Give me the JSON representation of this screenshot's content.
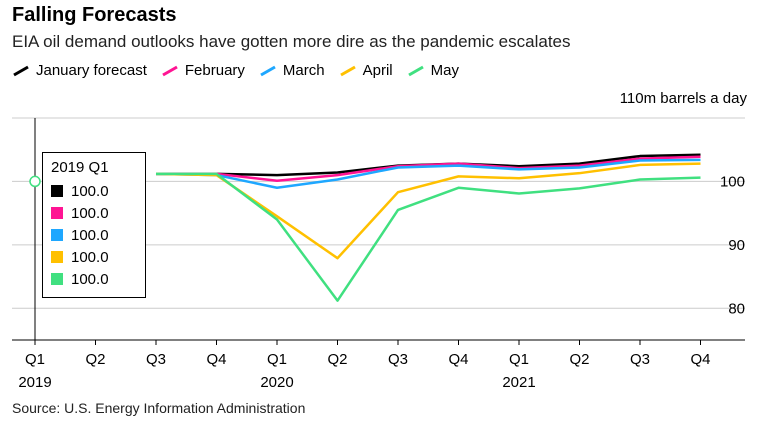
{
  "header": {
    "title": "Falling Forecasts",
    "subtitle": "EIA oil demand outlooks have gotten more dire as the pandemic escalates"
  },
  "unit_label": "110m barrels a day",
  "source": "Source: U.S. Energy Information Administration",
  "tooltip": {
    "title": "2019 Q1",
    "rows": [
      {
        "value": "100.0",
        "color": "#000000"
      },
      {
        "value": "100.0",
        "color": "#ff1493"
      },
      {
        "value": "100.0",
        "color": "#1ea7ff"
      },
      {
        "value": "100.0",
        "color": "#ffc000"
      },
      {
        "value": "100.0",
        "color": "#40e080"
      }
    ]
  },
  "chart_data": {
    "type": "line",
    "categories": [
      "Q1",
      "Q2",
      "Q3",
      "Q4",
      "Q1",
      "Q2",
      "Q3",
      "Q4",
      "Q1",
      "Q2",
      "Q3",
      "Q4"
    ],
    "year_labels": [
      {
        "index": 0,
        "label": "2019"
      },
      {
        "index": 4,
        "label": "2020"
      },
      {
        "index": 8,
        "label": "2021"
      }
    ],
    "ylim": [
      75,
      110
    ],
    "yticks": [
      80,
      90,
      100
    ],
    "grid": true,
    "legend_position": "top",
    "series": [
      {
        "name": "January forecast",
        "color": "#000000",
        "values": [
          null,
          null,
          101.2,
          101.2,
          101.0,
          101.4,
          102.5,
          102.8,
          102.4,
          102.8,
          104.0,
          104.2
        ]
      },
      {
        "name": "February",
        "color": "#ff1493",
        "values": [
          null,
          null,
          101.2,
          101.2,
          100.1,
          101.0,
          102.4,
          102.8,
          102.1,
          102.5,
          103.6,
          103.9
        ]
      },
      {
        "name": "March",
        "color": "#1ea7ff",
        "values": [
          null,
          null,
          101.2,
          101.0,
          99.0,
          100.3,
          102.2,
          102.5,
          101.9,
          102.2,
          103.3,
          103.4
        ]
      },
      {
        "name": "April",
        "color": "#ffc000",
        "values": [
          null,
          null,
          101.2,
          101.0,
          94.5,
          87.9,
          98.3,
          100.8,
          100.5,
          101.3,
          102.6,
          102.8
        ]
      },
      {
        "name": "May",
        "color": "#40e080",
        "values": [
          null,
          null,
          101.2,
          101.2,
          94.0,
          81.2,
          95.5,
          99.0,
          98.1,
          98.9,
          100.3,
          100.6
        ]
      }
    ]
  }
}
